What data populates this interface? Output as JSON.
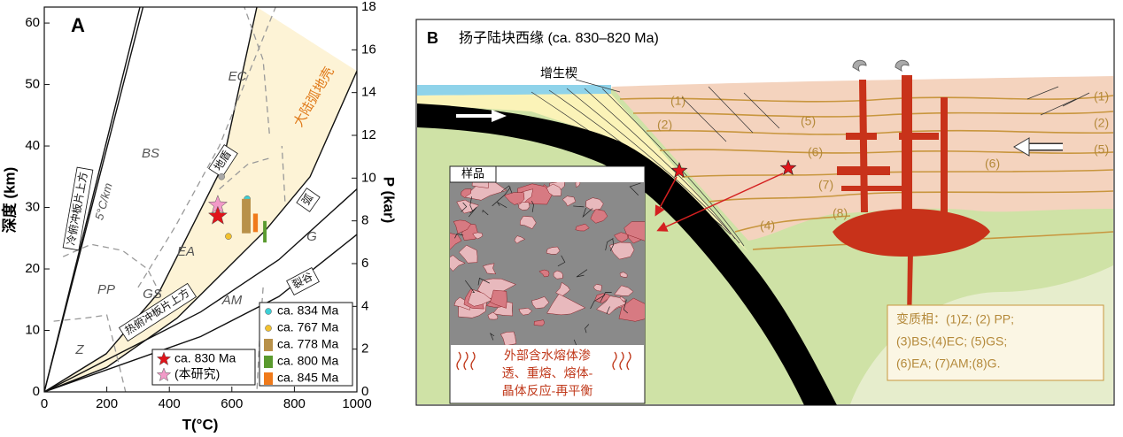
{
  "chart_data": {
    "type": "scatter",
    "panel_label": "A",
    "xlabel": "T(°C)",
    "ylabel": "深度 (km)",
    "y2label": "P (kar)",
    "xlim": [
      0,
      1000
    ],
    "xticks": [
      0,
      200,
      400,
      600,
      800,
      1000
    ],
    "ylim": [
      0,
      62.6
    ],
    "yticks": [
      0,
      10,
      20,
      30,
      40,
      50,
      60
    ],
    "y2lim": [
      0,
      18
    ],
    "y2ticks": [
      0,
      2,
      4,
      6,
      8,
      10,
      12,
      14,
      16,
      18
    ],
    "fill": {
      "color": "#fdf3d6",
      "x": [
        0,
        198,
        368,
        567,
        680,
        1000,
        850,
        708,
        425,
        200,
        0
      ],
      "y": [
        0,
        6.2,
        16.3,
        36.4,
        62.6,
        52.2,
        35,
        26.3,
        12,
        4,
        0
      ]
    },
    "curves": [
      {
        "style": "solid",
        "x": [
          0,
          306
        ],
        "y": [
          0,
          62.6
        ]
      },
      {
        "style": "solid",
        "x": [
          0,
          316
        ],
        "y": [
          0,
          62.6
        ]
      },
      {
        "style": "solid",
        "x": [
          0,
          198,
          368,
          567,
          680
        ],
        "y": [
          0,
          6.2,
          16.3,
          36.4,
          62.6
        ]
      },
      {
        "style": "solid",
        "x": [
          0,
          200,
          425,
          708,
          850,
          1000
        ],
        "y": [
          0,
          4,
          12,
          26.3,
          35,
          52.2
        ]
      },
      {
        "style": "solid",
        "x": [
          0,
          250,
          500,
          750,
          1000
        ],
        "y": [
          0,
          6.5,
          13,
          21.5,
          33
        ]
      },
      {
        "style": "solid",
        "x": [
          0,
          250,
          500,
          750,
          1000
        ],
        "y": [
          0,
          4.5,
          9,
          15.5,
          25.6
        ]
      },
      {
        "style": "dashed",
        "x": [
          30,
          130,
          200,
          260
        ],
        "y": [
          11.5,
          12,
          12.5,
          0
        ]
      },
      {
        "style": "dashed",
        "x": [
          60,
          150,
          250,
          330,
          400
        ],
        "y": [
          22,
          24,
          23,
          20,
          13
        ]
      },
      {
        "style": "dashed",
        "x": [
          300,
          420,
          560,
          740
        ],
        "y": [
          17,
          27,
          40,
          62.6
        ]
      },
      {
        "style": "dashed",
        "x": [
          560,
          650,
          720
        ],
        "y": [
          33,
          37,
          38
        ]
      },
      {
        "style": "dashed",
        "x": [
          700,
          690,
          680
        ],
        "y": [
          17,
          10,
          0
        ]
      },
      {
        "style": "dashed",
        "x": [
          720,
          710,
          700,
          640
        ],
        "y": [
          42,
          48,
          54,
          62.6
        ]
      },
      {
        "style": "dashed",
        "x": [
          770,
          760
        ],
        "y": [
          31,
          40
        ]
      }
    ],
    "annotations": [
      "EC",
      "BS",
      "EA",
      "PP",
      "GS",
      "AM",
      "G",
      "Z",
      "5°C/km",
      "冷俯冲板片上方",
      "热俯冲板片上方",
      "地盾",
      "弧",
      "裂谷",
      "大陆弧地壳"
    ],
    "series": [
      {
        "name": "ca. 834 Ma",
        "color": "#3ccfd6",
        "marker": "circle",
        "x": [
          649
        ],
        "y": [
          31.4
        ]
      },
      {
        "name": "ca. 767 Ma",
        "color": "#f2c12e",
        "marker": "circle",
        "x": [
          589
        ],
        "y": [
          25.3
        ]
      },
      {
        "name": "ca. 778 Ma",
        "color": "#b8914a",
        "marker": "range",
        "x": [
          632,
          660
        ],
        "y": [
          25.8,
          31.4
        ]
      },
      {
        "name": "ca. 800 Ma",
        "color": "#5a9a2e",
        "marker": "range",
        "x": [
          700,
          711
        ],
        "y": [
          24.3,
          27.8
        ]
      },
      {
        "name": "ca. 845 Ma",
        "color": "#f07a1a",
        "marker": "range",
        "x": [
          668,
          683
        ],
        "y": [
          26,
          29
        ]
      },
      {
        "color": "#a8a8a8",
        "marker": "circle",
        "x": [
          567
        ],
        "y": [
          35
        ]
      },
      {
        "name": "(本研究)",
        "color": "#f29ac8",
        "marker": "star",
        "x": [
          555
        ],
        "y": [
          30.4
        ]
      },
      {
        "name": "ca. 830 Ma",
        "color": "#e0141a",
        "marker": "star",
        "x": [
          555
        ],
        "y": [
          28.6
        ]
      }
    ]
  },
  "diagram": {
    "panel_label": "B",
    "title": "扬子陆块西缘 (ca. 830–820 Ma)",
    "wedge_label": "增生楔",
    "left_facies_labels": [
      "(1)",
      "(2)",
      "(5)",
      "(6)",
      "(7)",
      "(8)",
      "(4)"
    ],
    "right_facies_labels": [
      "(1)",
      "(2)",
      "(5)",
      "(6)"
    ],
    "sample_label": "样品",
    "process_text": [
      "外部含水熔体渗",
      "透、重熔、熔体-",
      "晶体反应-再平衡"
    ],
    "legend": [
      "变质相：(1)Z; (2) PP;",
      "(3)BS;(4)EC; (5)GS;",
      "(6)EA; (7)AM;(8)G."
    ]
  }
}
